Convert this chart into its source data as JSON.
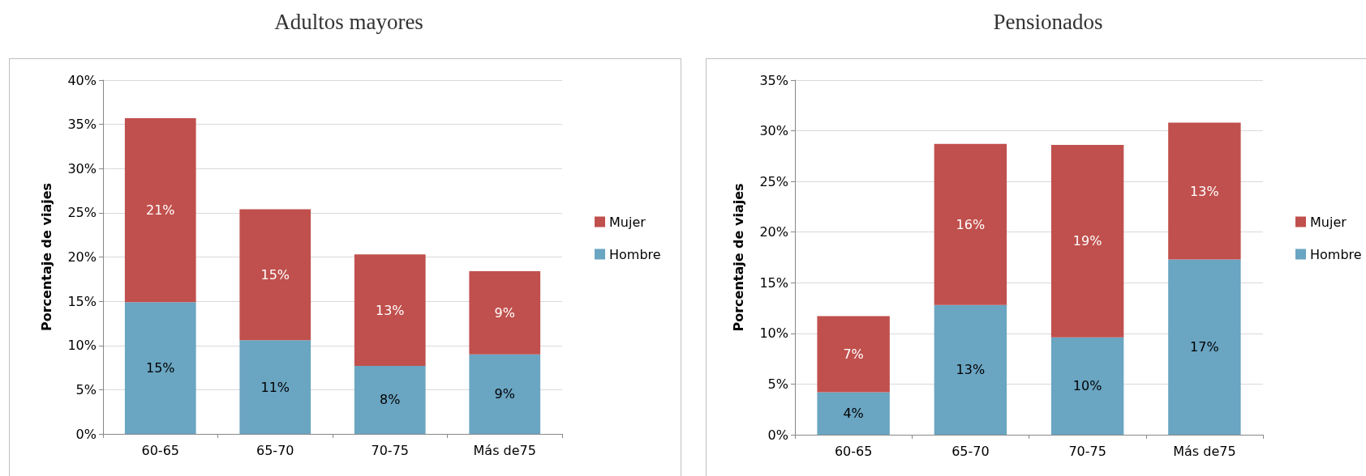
{
  "chart_data": [
    {
      "type": "bar",
      "title": "Adultos mayores",
      "ylabel": "Porcentaje de viajes",
      "categories": [
        "60-65",
        "65-70",
        "70-75",
        "Más de75"
      ],
      "stacked": true,
      "grid": "y",
      "legend": "right",
      "ylim": [
        0,
        40
      ],
      "yticks": [
        {
          "value": 0,
          "label": "0%"
        },
        {
          "value": 5,
          "label": "5%"
        },
        {
          "value": 10,
          "label": "10%"
        },
        {
          "value": 15,
          "label": "15%"
        },
        {
          "value": 20,
          "label": "20%"
        },
        {
          "value": 25,
          "label": "25%"
        },
        {
          "value": 30,
          "label": "30%"
        },
        {
          "value": 35,
          "label": "35%"
        },
        {
          "value": 40,
          "label": "40%"
        }
      ],
      "series": [
        {
          "name": "Hombre",
          "color": "#6aa5c2",
          "values": [
            14.9,
            10.6,
            7.7,
            9.0
          ],
          "value_labels": [
            "15%",
            "11%",
            "8%",
            "9%"
          ]
        },
        {
          "name": "Mujer",
          "color": "#c0504d",
          "values": [
            20.8,
            14.8,
            12.6,
            9.4
          ],
          "value_labels": [
            "21%",
            "15%",
            "13%",
            "9%"
          ]
        }
      ]
    },
    {
      "type": "bar",
      "title": "Pensionados",
      "ylabel": "Porcentaje de viajes",
      "categories": [
        "60-65",
        "65-70",
        "70-75",
        "Más de75"
      ],
      "stacked": true,
      "grid": "y",
      "legend": "right",
      "ylim": [
        0,
        35
      ],
      "yticks": [
        {
          "value": 0,
          "label": "0%"
        },
        {
          "value": 5,
          "label": "5%"
        },
        {
          "value": 10,
          "label": "10%"
        },
        {
          "value": 15,
          "label": "15%"
        },
        {
          "value": 20,
          "label": "20%"
        },
        {
          "value": 25,
          "label": "25%"
        },
        {
          "value": 30,
          "label": "30%"
        },
        {
          "value": 35,
          "label": "35%"
        }
      ],
      "series": [
        {
          "name": "Hombre",
          "color": "#6aa5c2",
          "values": [
            4.2,
            12.8,
            9.6,
            17.3
          ],
          "value_labels": [
            "4%",
            "13%",
            "10%",
            "17%"
          ]
        },
        {
          "name": "Mujer",
          "color": "#c0504d",
          "values": [
            7.5,
            15.9,
            19.0,
            13.5
          ],
          "value_labels": [
            "7%",
            "16%",
            "19%",
            "13%"
          ]
        }
      ]
    }
  ]
}
